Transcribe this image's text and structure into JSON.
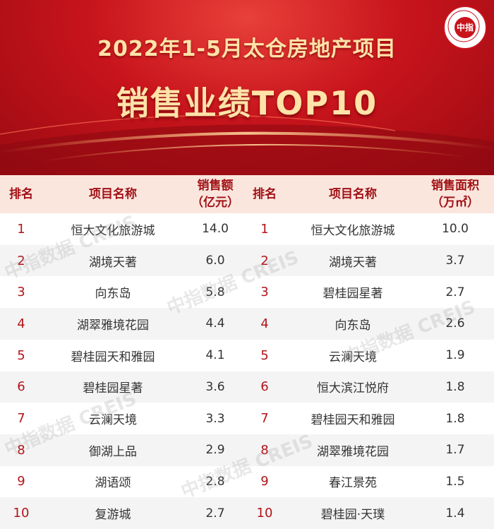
{
  "header": {
    "title_line1": "2022年1-5月太仓房地产项目",
    "title_line2": "销售业绩TOP10",
    "logo_text": "中指",
    "logo_ring_text": "CHINA INDEX ACADEMY · 研究院"
  },
  "table": {
    "left_headers": {
      "rank": "排名",
      "name": "项目名称",
      "metric_line1": "销售额",
      "metric_line2": "（亿元）"
    },
    "right_headers": {
      "rank": "排名",
      "name": "项目名称",
      "metric_line1": "销售面积",
      "metric_line2": "（万㎡）"
    },
    "left_rows": [
      {
        "rank": "1",
        "name": "恒大文化旅游城",
        "value": "14.0"
      },
      {
        "rank": "2",
        "name": "湖境天著",
        "value": "6.0"
      },
      {
        "rank": "3",
        "name": "向东岛",
        "value": "5.8"
      },
      {
        "rank": "4",
        "name": "湖翠雅境花园",
        "value": "4.4"
      },
      {
        "rank": "5",
        "name": "碧桂园天和雅园",
        "value": "4.1"
      },
      {
        "rank": "6",
        "name": "碧桂园星著",
        "value": "3.6"
      },
      {
        "rank": "7",
        "name": "云澜天境",
        "value": "3.3"
      },
      {
        "rank": "8",
        "name": "御湖上品",
        "value": "2.9"
      },
      {
        "rank": "9",
        "name": "湖语颂",
        "value": "2.8"
      },
      {
        "rank": "10",
        "name": "复游城",
        "value": "2.7"
      }
    ],
    "right_rows": [
      {
        "rank": "1",
        "name": "恒大文化旅游城",
        "value": "10.0"
      },
      {
        "rank": "2",
        "name": "湖境天著",
        "value": "3.7"
      },
      {
        "rank": "3",
        "name": "碧桂园星著",
        "value": "2.7"
      },
      {
        "rank": "4",
        "name": "向东岛",
        "value": "2.6"
      },
      {
        "rank": "5",
        "name": "云澜天境",
        "value": "1.9"
      },
      {
        "rank": "6",
        "name": "恒大滨江悦府",
        "value": "1.8"
      },
      {
        "rank": "7",
        "name": "碧桂园天和雅园",
        "value": "1.8"
      },
      {
        "rank": "8",
        "name": "湖翠雅境花园",
        "value": "1.7"
      },
      {
        "rank": "9",
        "name": "春江景苑",
        "value": "1.5"
      },
      {
        "rank": "10",
        "name": "碧桂园·天璞",
        "value": "1.4"
      }
    ]
  },
  "watermark": "中指数据 CREIS",
  "colors": {
    "banner_red": "#c8141c",
    "title_gold": "#ffe3a8",
    "header_bg": "#fbe6de",
    "rank_red": "#b3141a",
    "stripe": "#f4f4f4"
  }
}
